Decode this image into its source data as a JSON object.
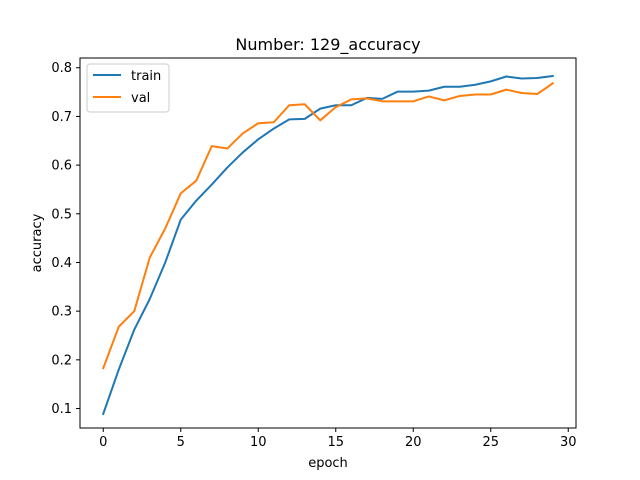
{
  "chart_data": {
    "type": "line",
    "title": "Number: 129_accuracy",
    "xlabel": "epoch",
    "ylabel": "accuracy",
    "xlim": [
      -1.5,
      30.5
    ],
    "ylim": [
      0.06,
      0.82
    ],
    "xticks": [
      0,
      5,
      10,
      15,
      20,
      25,
      30
    ],
    "yticks": [
      0.1,
      0.2,
      0.3,
      0.4,
      0.5,
      0.6,
      0.7,
      0.8
    ],
    "xtick_labels": [
      "0",
      "5",
      "10",
      "15",
      "20",
      "25",
      "30"
    ],
    "ytick_labels": [
      "0.1",
      "0.2",
      "0.3",
      "0.4",
      "0.5",
      "0.6",
      "0.7",
      "0.8"
    ],
    "grid": false,
    "legend_position": "top-left",
    "x": [
      0,
      1,
      2,
      3,
      4,
      5,
      6,
      7,
      8,
      9,
      10,
      11,
      12,
      13,
      14,
      15,
      16,
      17,
      18,
      19,
      20,
      21,
      22,
      23,
      24,
      25,
      26,
      27,
      28,
      29
    ],
    "series": [
      {
        "name": "train",
        "color": "#1f77b4",
        "values": [
          0.089,
          0.18,
          0.262,
          0.325,
          0.4,
          0.488,
          0.527,
          0.56,
          0.595,
          0.626,
          0.653,
          0.675,
          0.694,
          0.695,
          0.716,
          0.723,
          0.723,
          0.738,
          0.736,
          0.751,
          0.751,
          0.753,
          0.761,
          0.761,
          0.765,
          0.772,
          0.782,
          0.778,
          0.779,
          0.783
        ]
      },
      {
        "name": "val",
        "color": "#ff7f0e",
        "values": [
          0.183,
          0.268,
          0.3,
          0.41,
          0.47,
          0.542,
          0.568,
          0.639,
          0.634,
          0.665,
          0.686,
          0.688,
          0.723,
          0.725,
          0.692,
          0.719,
          0.735,
          0.737,
          0.731,
          0.731,
          0.731,
          0.741,
          0.733,
          0.742,
          0.745,
          0.745,
          0.755,
          0.748,
          0.746,
          0.768
        ]
      }
    ]
  }
}
